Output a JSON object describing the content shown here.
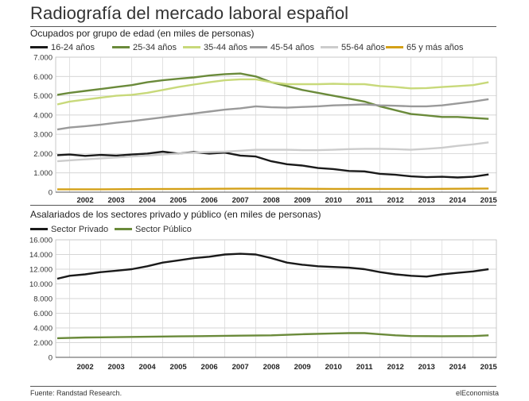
{
  "title": "Radiografía del mercado laboral español",
  "source": "Fuente: Randstad Research.",
  "brand": "elEconomista",
  "chart_data": [
    {
      "type": "line",
      "title": "Ocupados por grupo de edad (en miles de personas)",
      "legend_position": "top",
      "x_range": [
        2001.55,
        2015.75
      ],
      "ylim": [
        0,
        7000
      ],
      "yticks": [
        0,
        1000,
        2000,
        3000,
        4000,
        5000,
        6000,
        7000
      ],
      "ytick_labels": [
        "0",
        "1.000",
        "2.000",
        "3.000",
        "4.000",
        "5.000",
        "6.000",
        "7.000"
      ],
      "xtick_labels": [
        "2002",
        "2003",
        "2004",
        "2005",
        "2006",
        "2007",
        "2008",
        "2009",
        "2010",
        "2011",
        "2012",
        "2013",
        "2014",
        "2015"
      ],
      "grid": true,
      "series": [
        {
          "name": "16-24 años",
          "color": "#1a1a1a",
          "x": [
            2001.6,
            2002.0,
            2002.5,
            2003.0,
            2003.5,
            2004.0,
            2004.5,
            2005.0,
            2005.5,
            2006.0,
            2006.5,
            2007.0,
            2007.5,
            2008.0,
            2008.5,
            2009.0,
            2009.5,
            2010.0,
            2010.5,
            2011.0,
            2011.5,
            2012.0,
            2012.5,
            2013.0,
            2013.5,
            2014.0,
            2014.5,
            2015.0,
            2015.5
          ],
          "y": [
            1920,
            1950,
            1880,
            1930,
            1900,
            1950,
            2000,
            2100,
            2000,
            2080,
            2000,
            2050,
            1900,
            1850,
            1600,
            1450,
            1380,
            1250,
            1200,
            1100,
            1080,
            950,
            900,
            820,
            780,
            800,
            760,
            800,
            920
          ]
        },
        {
          "name": "25-34 años",
          "color": "#6a8a3a",
          "x": [
            2001.6,
            2002.0,
            2002.5,
            2003.0,
            2003.5,
            2004.0,
            2004.5,
            2005.0,
            2005.5,
            2006.0,
            2006.5,
            2007.0,
            2007.5,
            2008.0,
            2008.5,
            2009.0,
            2009.5,
            2010.0,
            2010.5,
            2011.0,
            2011.5,
            2012.0,
            2012.5,
            2013.0,
            2013.5,
            2014.0,
            2014.5,
            2015.0,
            2015.5
          ],
          "y": [
            5050,
            5150,
            5250,
            5350,
            5450,
            5550,
            5700,
            5800,
            5880,
            5950,
            6050,
            6120,
            6150,
            6000,
            5700,
            5500,
            5300,
            5150,
            5000,
            4850,
            4700,
            4450,
            4250,
            4050,
            3980,
            3900,
            3900,
            3850,
            3800
          ]
        },
        {
          "name": "35-44 años",
          "color": "#c8d97a",
          "x": [
            2001.6,
            2002.0,
            2002.5,
            2003.0,
            2003.5,
            2004.0,
            2004.5,
            2005.0,
            2005.5,
            2006.0,
            2006.5,
            2007.0,
            2007.5,
            2008.0,
            2008.5,
            2009.0,
            2009.5,
            2010.0,
            2010.5,
            2011.0,
            2011.5,
            2012.0,
            2012.5,
            2013.0,
            2013.5,
            2014.0,
            2014.5,
            2015.0,
            2015.5
          ],
          "y": [
            4550,
            4700,
            4800,
            4900,
            5000,
            5050,
            5150,
            5300,
            5450,
            5580,
            5700,
            5800,
            5850,
            5850,
            5700,
            5600,
            5600,
            5600,
            5620,
            5600,
            5600,
            5500,
            5450,
            5380,
            5400,
            5450,
            5500,
            5550,
            5700
          ]
        },
        {
          "name": "45-54 años",
          "color": "#9a9a9a",
          "x": [
            2001.6,
            2002.0,
            2002.5,
            2003.0,
            2003.5,
            2004.0,
            2004.5,
            2005.0,
            2005.5,
            2006.0,
            2006.5,
            2007.0,
            2007.5,
            2008.0,
            2008.5,
            2009.0,
            2009.5,
            2010.0,
            2010.5,
            2011.0,
            2011.5,
            2012.0,
            2012.5,
            2013.0,
            2013.5,
            2014.0,
            2014.5,
            2015.0,
            2015.5
          ],
          "y": [
            3250,
            3350,
            3420,
            3500,
            3600,
            3680,
            3780,
            3880,
            3980,
            4080,
            4180,
            4280,
            4350,
            4450,
            4400,
            4380,
            4420,
            4450,
            4500,
            4520,
            4550,
            4500,
            4480,
            4450,
            4450,
            4500,
            4600,
            4700,
            4820
          ]
        },
        {
          "name": "55-64 años",
          "color": "#cccccc",
          "x": [
            2001.6,
            2002.0,
            2002.5,
            2003.0,
            2003.5,
            2004.0,
            2004.5,
            2005.0,
            2005.5,
            2006.0,
            2006.5,
            2007.0,
            2007.5,
            2008.0,
            2008.5,
            2009.0,
            2009.5,
            2010.0,
            2010.5,
            2011.0,
            2011.5,
            2012.0,
            2012.5,
            2013.0,
            2013.5,
            2014.0,
            2014.5,
            2015.0,
            2015.5
          ],
          "y": [
            1600,
            1650,
            1700,
            1750,
            1800,
            1850,
            1900,
            1950,
            2000,
            2050,
            2080,
            2100,
            2150,
            2200,
            2200,
            2200,
            2180,
            2180,
            2200,
            2230,
            2250,
            2250,
            2230,
            2200,
            2250,
            2300,
            2400,
            2480,
            2580
          ]
        },
        {
          "name": "65 y más años",
          "color": "#d4a017",
          "x": [
            2001.6,
            2003.0,
            2004.5,
            2006.0,
            2007.5,
            2009.0,
            2010.5,
            2012.0,
            2013.5,
            2015.0,
            2015.5
          ],
          "y": [
            150,
            150,
            160,
            170,
            180,
            180,
            170,
            170,
            170,
            180,
            190
          ]
        }
      ]
    },
    {
      "type": "line",
      "title": "Asalariados de los sectores privado y público (en miles de personas)",
      "legend_position": "top",
      "x_range": [
        2001.55,
        2015.75
      ],
      "ylim": [
        0,
        16000
      ],
      "yticks": [
        0,
        2000,
        4000,
        6000,
        8000,
        10000,
        12000,
        14000,
        16000
      ],
      "ytick_labels": [
        "0",
        "2.000",
        "4.000",
        "6.000",
        "8.000",
        "10.000",
        "12.000",
        "14.000",
        "16.000"
      ],
      "xtick_labels": [
        "2002",
        "2003",
        "2004",
        "2005",
        "2006",
        "2007",
        "2008",
        "2009",
        "2010",
        "2011",
        "2012",
        "2013",
        "2014",
        "2015"
      ],
      "grid": true,
      "series": [
        {
          "name": "Sector Privado",
          "color": "#1a1a1a",
          "x": [
            2001.6,
            2002.0,
            2002.5,
            2003.0,
            2003.5,
            2004.0,
            2004.5,
            2005.0,
            2005.5,
            2006.0,
            2006.5,
            2007.0,
            2007.5,
            2008.0,
            2008.5,
            2009.0,
            2009.5,
            2010.0,
            2010.5,
            2011.0,
            2011.5,
            2012.0,
            2012.5,
            2013.0,
            2013.5,
            2014.0,
            2014.5,
            2015.0,
            2015.5
          ],
          "y": [
            10700,
            11100,
            11300,
            11600,
            11800,
            12000,
            12400,
            12900,
            13200,
            13500,
            13700,
            14000,
            14100,
            14000,
            13500,
            12900,
            12600,
            12400,
            12300,
            12200,
            12000,
            11600,
            11300,
            11100,
            11000,
            11300,
            11500,
            11700,
            12000
          ]
        },
        {
          "name": "Sector Público",
          "color": "#6a8a3a",
          "x": [
            2001.6,
            2002.5,
            2003.5,
            2004.5,
            2005.5,
            2006.5,
            2007.5,
            2008.5,
            2009.5,
            2010.5,
            2011.0,
            2011.5,
            2012.0,
            2012.5,
            2013.0,
            2014.0,
            2015.0,
            2015.5
          ],
          "y": [
            2600,
            2700,
            2750,
            2800,
            2850,
            2900,
            2950,
            3000,
            3150,
            3250,
            3300,
            3300,
            3150,
            3000,
            2900,
            2880,
            2900,
            3000
          ]
        }
      ]
    }
  ]
}
